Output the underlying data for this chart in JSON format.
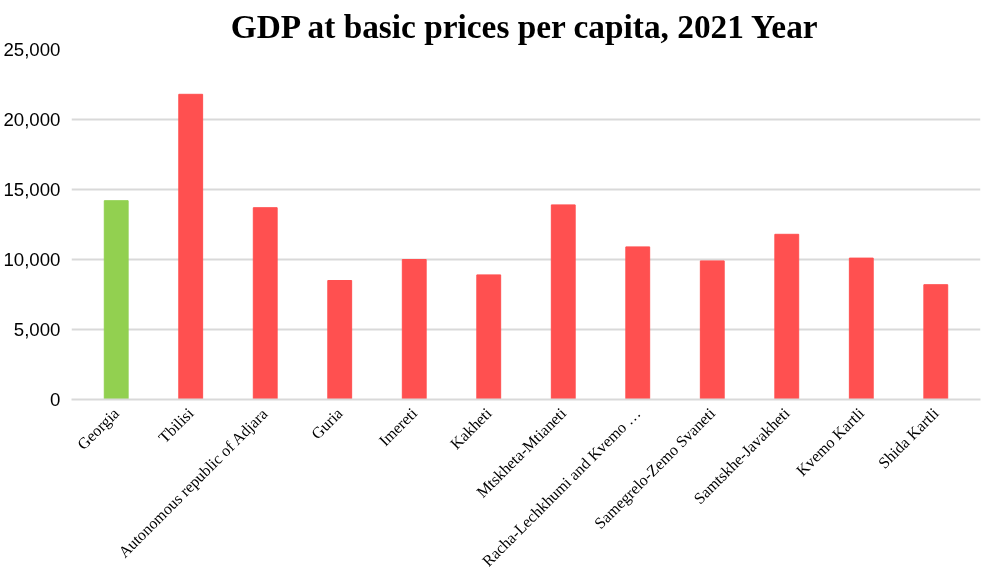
{
  "chart_data": {
    "type": "bar",
    "title": "GDP at basic prices per capita, 2021 Year",
    "categories": [
      "Georgia",
      "Tbilisi",
      "Autonomous republic of Adjara",
      "Guria",
      "Imereti",
      "Kakheti",
      "Mtskheta-Mtianeti",
      "Racha-Lechkhumi and Kvemo …",
      "Samegrelo-Zemo Svaneti",
      "Samtskhe-Javakheti",
      "Kvemo Kartli",
      "Shida Kartli"
    ],
    "values": [
      14200,
      21800,
      13700,
      8500,
      10000,
      8900,
      13900,
      10900,
      9900,
      11800,
      10100,
      8200
    ],
    "colors": [
      "#92d050",
      "#ff5050",
      "#ff5050",
      "#ff5050",
      "#ff5050",
      "#ff5050",
      "#ff5050",
      "#ff5050",
      "#ff5050",
      "#ff5050",
      "#ff5050",
      "#ff5050"
    ],
    "ylim": [
      0,
      25000
    ],
    "yticks": [
      {
        "value": 0,
        "label": "0"
      },
      {
        "value": 5000,
        "label": "5,000"
      },
      {
        "value": 10000,
        "label": "10,000"
      },
      {
        "value": 15000,
        "label": "15,000"
      },
      {
        "value": 20000,
        "label": "20,000"
      },
      {
        "value": 25000,
        "label": "25,000"
      }
    ],
    "grid": "y"
  }
}
